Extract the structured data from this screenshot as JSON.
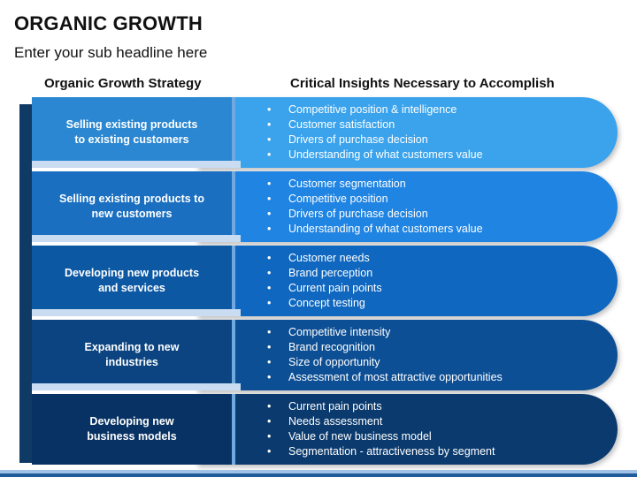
{
  "page": {
    "title": "ORGANIC GROWTH",
    "subtitle": "Enter your sub headline here"
  },
  "columns": {
    "left_heading": "Organic Growth Strategy",
    "right_heading": "Critical Insights Necessary to Accomplish"
  },
  "rows": [
    {
      "strategy": "Selling existing products\nto existing customers",
      "insights": [
        "Competitive position & intelligence",
        "Customer satisfaction",
        "Drivers of purchase decision",
        "Understanding of what customers value"
      ],
      "color": "#3aa3ec",
      "label_color": "#2b87d1"
    },
    {
      "strategy": "Selling existing products to\nnew customers",
      "insights": [
        "Customer segmentation",
        "Competitive position",
        "Drivers of purchase decision",
        "Understanding of what customers value"
      ],
      "color": "#1f84e2",
      "label_color": "#1a6fc0"
    },
    {
      "strategy": "Developing new products\nand services",
      "insights": [
        "Customer needs",
        "Brand perception",
        "Current pain points",
        "Concept testing"
      ],
      "color": "#0f67bf",
      "label_color": "#0d58a3"
    },
    {
      "strategy": "Expanding to new\nindustries",
      "insights": [
        "Competitive intensity",
        "Brand recognition",
        "Size of opportunity",
        "Assessment of most attractive opportunities"
      ],
      "color": "#0d4f94",
      "label_color": "#0b4480"
    },
    {
      "strategy": "Developing new\nbusiness models",
      "insights": [
        "Current pain points",
        "Needs assessment",
        "Value of new business model",
        "Segmentation - attractiveness by segment"
      ],
      "color": "#0a3a6e",
      "label_color": "#083263"
    }
  ]
}
